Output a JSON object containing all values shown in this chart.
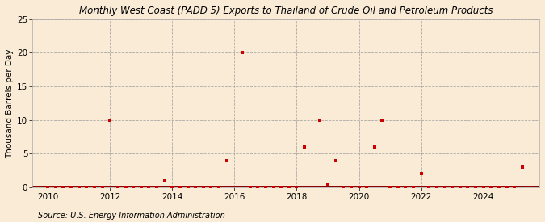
{
  "title": "Monthly West Coast (PADD 5) Exports to Thailand of Crude Oil and Petroleum Products",
  "ylabel": "Thousand Barrels per Day",
  "source": "Source: U.S. Energy Information Administration",
  "background_color": "#faebd7",
  "plot_bg_color": "#faebd7",
  "marker_color": "#cc0000",
  "line_color": "#8b0000",
  "xlim": [
    2009.5,
    2025.8
  ],
  "ylim": [
    0,
    25
  ],
  "yticks": [
    0,
    5,
    10,
    15,
    20,
    25
  ],
  "xticks": [
    2010,
    2012,
    2014,
    2016,
    2018,
    2020,
    2022,
    2024
  ],
  "data_x": [
    2012.0,
    2013.75,
    2015.75,
    2016.25,
    2018.25,
    2018.75,
    2019.0,
    2019.25,
    2020.5,
    2020.75,
    2022.0,
    2025.25
  ],
  "data_y": [
    10,
    1,
    4,
    20,
    6,
    10,
    0.3,
    4,
    6,
    10,
    2,
    3
  ],
  "title_fontsize": 8.5,
  "axis_fontsize": 7.5,
  "source_fontsize": 7.0,
  "marker_size": 8
}
